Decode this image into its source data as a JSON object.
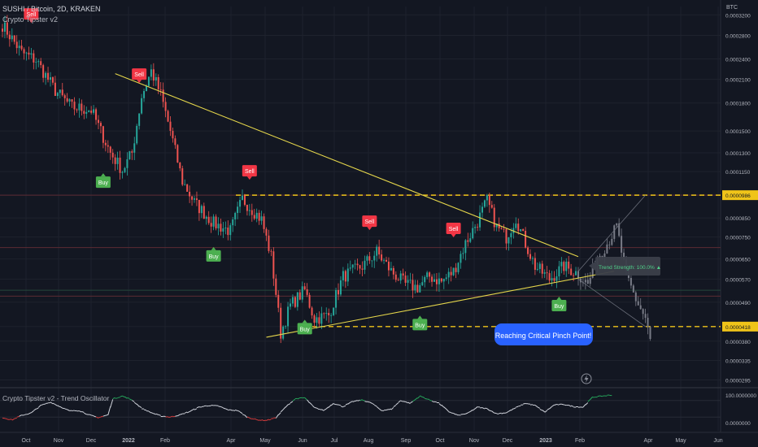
{
  "header": {
    "symbol_line": "SUSHI / Bitcoin, 2D, KRAKEN",
    "indicator": "Crypto Tipster v2",
    "currency": "BTC"
  },
  "oscillator": {
    "title": "Crypto Tipster v2 - Trend Oscillator",
    "ticks": [
      "100.0000000",
      "0.0000000"
    ]
  },
  "annotations": {
    "pinch_point": "Reaching Critical Pinch Point!",
    "trend_strength": "Trend Strength: 100.0%  ▲",
    "sell_label": "Sell",
    "buy_label": "Buy"
  },
  "colors": {
    "background": "#131722",
    "up": "#26a69a",
    "down": "#ef5350",
    "trendline": "#e5d64b",
    "level_line": "#f0c419",
    "sell": "#f23645",
    "buy": "#4caf50",
    "callout": "#2962ff"
  },
  "chart_data": {
    "type": "candlestick",
    "x_axis_ticks": [
      "Oct",
      "Nov",
      "Dec",
      "2022",
      "Feb",
      "Apr",
      "May",
      "Jun",
      "Jul",
      "Aug",
      "Sep",
      "Oct",
      "Nov",
      "Dec",
      "2023",
      "Feb",
      "Apr",
      "May",
      "Jun"
    ],
    "y_axis_ticks": [
      "0.0003200",
      "0.0002800",
      "0.0002400",
      "0.0002100",
      "0.0001800",
      "0.0001500",
      "0.0001300",
      "0.0001150",
      "0.0000986",
      "0.0000850",
      "0.0000750",
      "0.0000650",
      "0.0000570",
      "0.0000490",
      "0.0000418",
      "0.0000380",
      "0.0000335",
      "0.0000295"
    ],
    "highlighted_levels": [
      "0.0000986",
      "0.0000418"
    ],
    "y_scale": "log",
    "path": [
      [
        0,
        0.0003
      ],
      [
        8,
        0.00025
      ],
      [
        14,
        0.000238
      ],
      [
        22,
        0.000195
      ],
      [
        29,
        0.000175
      ],
      [
        37,
        0.000172
      ],
      [
        45,
        0.00013
      ],
      [
        50,
        0.000116
      ],
      [
        54,
        0.00013
      ],
      [
        58,
        0.000188
      ],
      [
        62,
        0.000222
      ],
      [
        66,
        0.00019
      ],
      [
        70,
        0.00015
      ],
      [
        75,
        0.000108
      ],
      [
        80,
        9.4e-05
      ],
      [
        88,
        8.2e-05
      ],
      [
        95,
        7.8e-05
      ],
      [
        100,
        9.6e-05
      ],
      [
        104,
        9e-05
      ],
      [
        108,
        8.4e-05
      ],
      [
        112,
        6.6e-05
      ],
      [
        114,
        5.2e-05
      ],
      [
        116,
        4e-05
      ],
      [
        120,
        4.8e-05
      ],
      [
        126,
        5.3e-05
      ],
      [
        130,
        4.4e-05
      ],
      [
        136,
        4.5e-05
      ],
      [
        142,
        5.8e-05
      ],
      [
        150,
        6.2e-05
      ],
      [
        156,
        6.8e-05
      ],
      [
        162,
        6e-05
      ],
      [
        168,
        5.5e-05
      ],
      [
        173,
        5.4e-05
      ],
      [
        178,
        5.8e-05
      ],
      [
        183,
        5.6e-05
      ],
      [
        188,
        6e-05
      ],
      [
        193,
        7.2e-05
      ],
      [
        198,
        8.3e-05
      ],
      [
        202,
        9.5e-05
      ],
      [
        206,
        8e-05
      ],
      [
        210,
        7.5e-05
      ],
      [
        214,
        8.5e-05
      ],
      [
        218,
        7.2e-05
      ],
      [
        222,
        6.2e-05
      ],
      [
        228,
        5.7e-05
      ],
      [
        234,
        6.2e-05
      ],
      [
        240,
        5.9e-05
      ],
      [
        244,
        5.5e-05
      ],
      [
        248,
        6.6e-05
      ],
      [
        252,
        7.2e-05
      ],
      [
        256,
        8e-05
      ],
      [
        260,
        5.8e-05
      ],
      [
        264,
        5e-05
      ],
      [
        268,
        4.4e-05
      ],
      [
        270,
        3.8e-05
      ]
    ],
    "bars": 271,
    "signals": [
      {
        "type": "sell",
        "bar": 12
      },
      {
        "type": "buy",
        "bar": 42
      },
      {
        "type": "sell",
        "bar": 57
      },
      {
        "type": "buy",
        "bar": 88
      },
      {
        "type": "sell",
        "bar": 103
      },
      {
        "type": "buy",
        "bar": 126
      },
      {
        "type": "sell",
        "bar": 153
      },
      {
        "type": "buy",
        "bar": 174
      },
      {
        "type": "sell",
        "bar": 188
      },
      {
        "type": "buy",
        "bar": 232
      }
    ],
    "trendlines": [
      {
        "name": "upper",
        "from": [
          47,
          0.000218
        ],
        "to": [
          240,
          6.6e-05
        ]
      },
      {
        "name": "lower",
        "from": [
          110,
          3.9e-05
        ],
        "to": [
          255,
          6e-05
        ]
      }
    ],
    "horizontal_lines": [
      9.86e-05,
      4.18e-05
    ],
    "zone_lines": [
      7e-05,
      5.3e-05,
      5.1e-05
    ],
    "oscillator_path": [
      [
        0,
        18
      ],
      [
        4,
        10
      ],
      [
        8,
        26
      ],
      [
        12,
        35
      ],
      [
        16,
        62
      ],
      [
        20,
        74
      ],
      [
        24,
        58
      ],
      [
        28,
        42
      ],
      [
        32,
        44
      ],
      [
        36,
        28
      ],
      [
        40,
        18
      ],
      [
        44,
        28
      ],
      [
        46,
        86
      ],
      [
        50,
        96
      ],
      [
        54,
        82
      ],
      [
        58,
        52
      ],
      [
        62,
        36
      ],
      [
        66,
        24
      ],
      [
        70,
        20
      ],
      [
        74,
        28
      ],
      [
        78,
        40
      ],
      [
        82,
        56
      ],
      [
        86,
        62
      ],
      [
        90,
        60
      ],
      [
        94,
        46
      ],
      [
        98,
        44
      ],
      [
        102,
        20
      ],
      [
        106,
        10
      ],
      [
        110,
        8
      ],
      [
        114,
        18
      ],
      [
        118,
        56
      ],
      [
        122,
        86
      ],
      [
        126,
        90
      ],
      [
        130,
        54
      ],
      [
        134,
        44
      ],
      [
        138,
        70
      ],
      [
        142,
        58
      ],
      [
        146,
        76
      ],
      [
        150,
        82
      ],
      [
        154,
        70
      ],
      [
        158,
        44
      ],
      [
        162,
        48
      ],
      [
        166,
        80
      ],
      [
        170,
        70
      ],
      [
        174,
        96
      ],
      [
        178,
        82
      ],
      [
        182,
        70
      ],
      [
        186,
        40
      ],
      [
        190,
        26
      ],
      [
        194,
        34
      ],
      [
        198,
        56
      ],
      [
        202,
        50
      ],
      [
        206,
        32
      ],
      [
        210,
        36
      ],
      [
        214,
        54
      ],
      [
        218,
        70
      ],
      [
        222,
        62
      ],
      [
        226,
        38
      ],
      [
        230,
        64
      ],
      [
        234,
        66
      ],
      [
        238,
        58
      ],
      [
        242,
        56
      ],
      [
        246,
        92
      ],
      [
        250,
        96
      ],
      [
        254,
        100
      ]
    ]
  }
}
